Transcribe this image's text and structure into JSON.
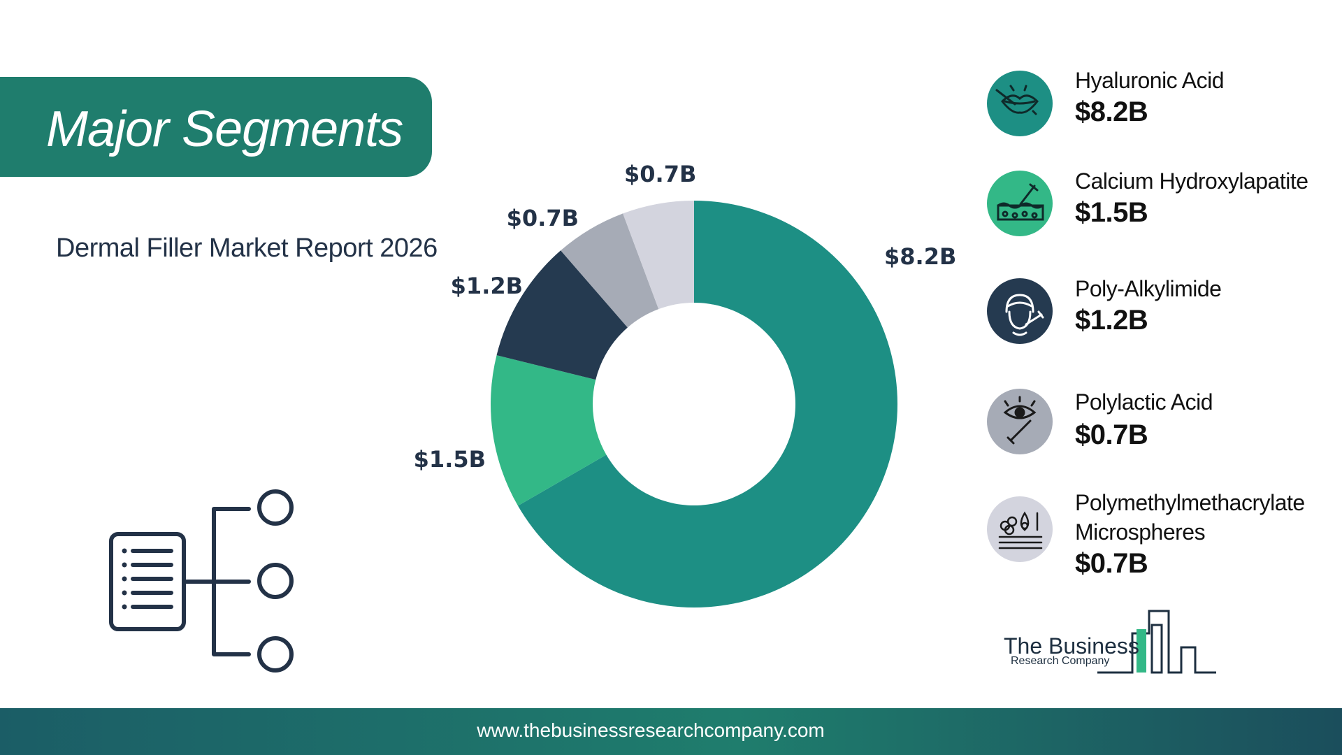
{
  "header": {
    "title": "Major Segments"
  },
  "report_title": "Dermal Filler Market Report 2026",
  "footer": {
    "url": "www.thebusinessresearchcompany.com"
  },
  "logo": {
    "line1": "The Business",
    "line2": "Research Company"
  },
  "colors": {
    "brand": "#1f7d6d",
    "dark": "#233247"
  },
  "legend": [
    {
      "name": "Hyaluronic Acid",
      "value": "$8.2B",
      "icon": "lips-injection-icon",
      "color": "#1d8f84"
    },
    {
      "name": "Calcium Hydroxylapatite",
      "value": "$1.5B",
      "icon": "skin-injection-icon",
      "color": "#33b887"
    },
    {
      "name": "Poly-Alkylimide",
      "value": "$1.2B",
      "icon": "face-injection-icon",
      "color": "#253a50"
    },
    {
      "name": "Polylactic Acid",
      "value": "$0.7B",
      "icon": "eye-injection-icon",
      "color": "#a6abb6"
    },
    {
      "name": "Polymethylmethacrylate Microspheres",
      "value": "$0.7B",
      "icon": "microspheres-icon",
      "color": "#d3d4de"
    }
  ],
  "chart_data": {
    "type": "pie",
    "style": "donut",
    "categories": [
      "Hyaluronic Acid",
      "Calcium Hydroxylapatite",
      "Poly-Alkylimide",
      "Polylactic Acid",
      "Polymethylmethacrylate Microspheres"
    ],
    "values": [
      8.2,
      1.5,
      1.2,
      0.7,
      0.7
    ],
    "unit": "$B",
    "data_labels": [
      "$8.2B",
      "$1.5B",
      "$1.2B",
      "$0.7B",
      "$0.7B"
    ],
    "colors": [
      "#1d8f84",
      "#33b887",
      "#253a50",
      "#a6abb6",
      "#d3d4de"
    ],
    "start_angle": "12 o'clock",
    "direction": "clockwise",
    "legend_placement": "right"
  }
}
